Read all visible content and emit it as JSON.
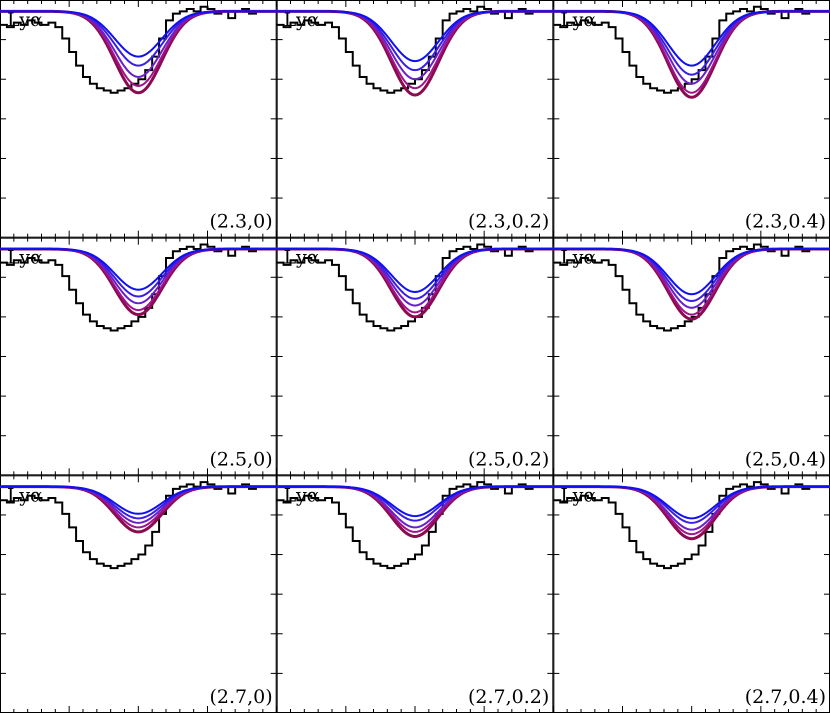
{
  "chart_data": {
    "type": "line",
    "layout": {
      "rows": 3,
      "cols": 3
    },
    "x_range": [
      -1,
      1
    ],
    "y_range": [
      0,
      1.05
    ],
    "colors": {
      "spectrum": "#000000",
      "models": [
        "#8b0a50",
        "#a0138c",
        "#6a1fc8",
        "#3a1ee6",
        "#1010f0"
      ]
    },
    "panels": [
      {
        "species": "Lyα",
        "label": "(2.3,0)",
        "model_minima": [
          0.64,
          0.67,
          0.71,
          0.76,
          0.8
        ]
      },
      {
        "species": "Lyα",
        "label": "(2.3,0.2)",
        "model_minima": [
          0.63,
          0.66,
          0.7,
          0.74,
          0.78
        ]
      },
      {
        "species": "Lyα",
        "label": "(2.3,0.4)",
        "model_minima": [
          0.62,
          0.64,
          0.68,
          0.72,
          0.76
        ]
      },
      {
        "species": "Lyα",
        "label": "(2.5,0)",
        "model_minima": [
          0.71,
          0.73,
          0.76,
          0.79,
          0.82
        ]
      },
      {
        "species": "Lyα",
        "label": "(2.5,0.2)",
        "model_minima": [
          0.7,
          0.72,
          0.75,
          0.78,
          0.81
        ]
      },
      {
        "species": "Lyα",
        "label": "(2.5,0.4)",
        "model_minima": [
          0.69,
          0.71,
          0.74,
          0.77,
          0.8
        ]
      },
      {
        "species": "Lyα",
        "label": "(2.7,0)",
        "model_minima": [
          0.8,
          0.82,
          0.84,
          0.86,
          0.88
        ]
      },
      {
        "species": "Lyα",
        "label": "(2.7,0.2)",
        "model_minima": [
          0.78,
          0.8,
          0.82,
          0.85,
          0.87
        ]
      },
      {
        "species": "Lyα",
        "label": "(2.7,0.4)",
        "model_minima": [
          0.77,
          0.79,
          0.81,
          0.84,
          0.86
        ]
      }
    ],
    "observed_spectrum": {
      "x": [
        -1.0,
        -0.95,
        -0.9,
        -0.85,
        -0.8,
        -0.75,
        -0.7,
        -0.65,
        -0.6,
        -0.55,
        -0.5,
        -0.45,
        -0.4,
        -0.35,
        -0.3,
        -0.25,
        -0.2,
        -0.15,
        -0.1,
        -0.05,
        0.0,
        0.05,
        0.1,
        0.15,
        0.2,
        0.25,
        0.3,
        0.35,
        0.4,
        0.45,
        0.5,
        0.55,
        0.6,
        0.65,
        0.7,
        0.75,
        0.8,
        0.85,
        0.9,
        0.95,
        1.0
      ],
      "y": [
        0.94,
        0.93,
        0.95,
        0.94,
        0.96,
        0.95,
        0.94,
        0.95,
        0.93,
        0.88,
        0.82,
        0.76,
        0.71,
        0.68,
        0.66,
        0.65,
        0.64,
        0.65,
        0.66,
        0.68,
        0.7,
        0.74,
        0.8,
        0.88,
        0.96,
        0.99,
        1.0,
        1.01,
        1.0,
        1.02,
        1.01,
        0.99,
        1.0,
        0.97,
        1.0,
        1.01,
        0.99,
        1.0,
        1.0,
        1.0,
        1.0
      ]
    }
  }
}
